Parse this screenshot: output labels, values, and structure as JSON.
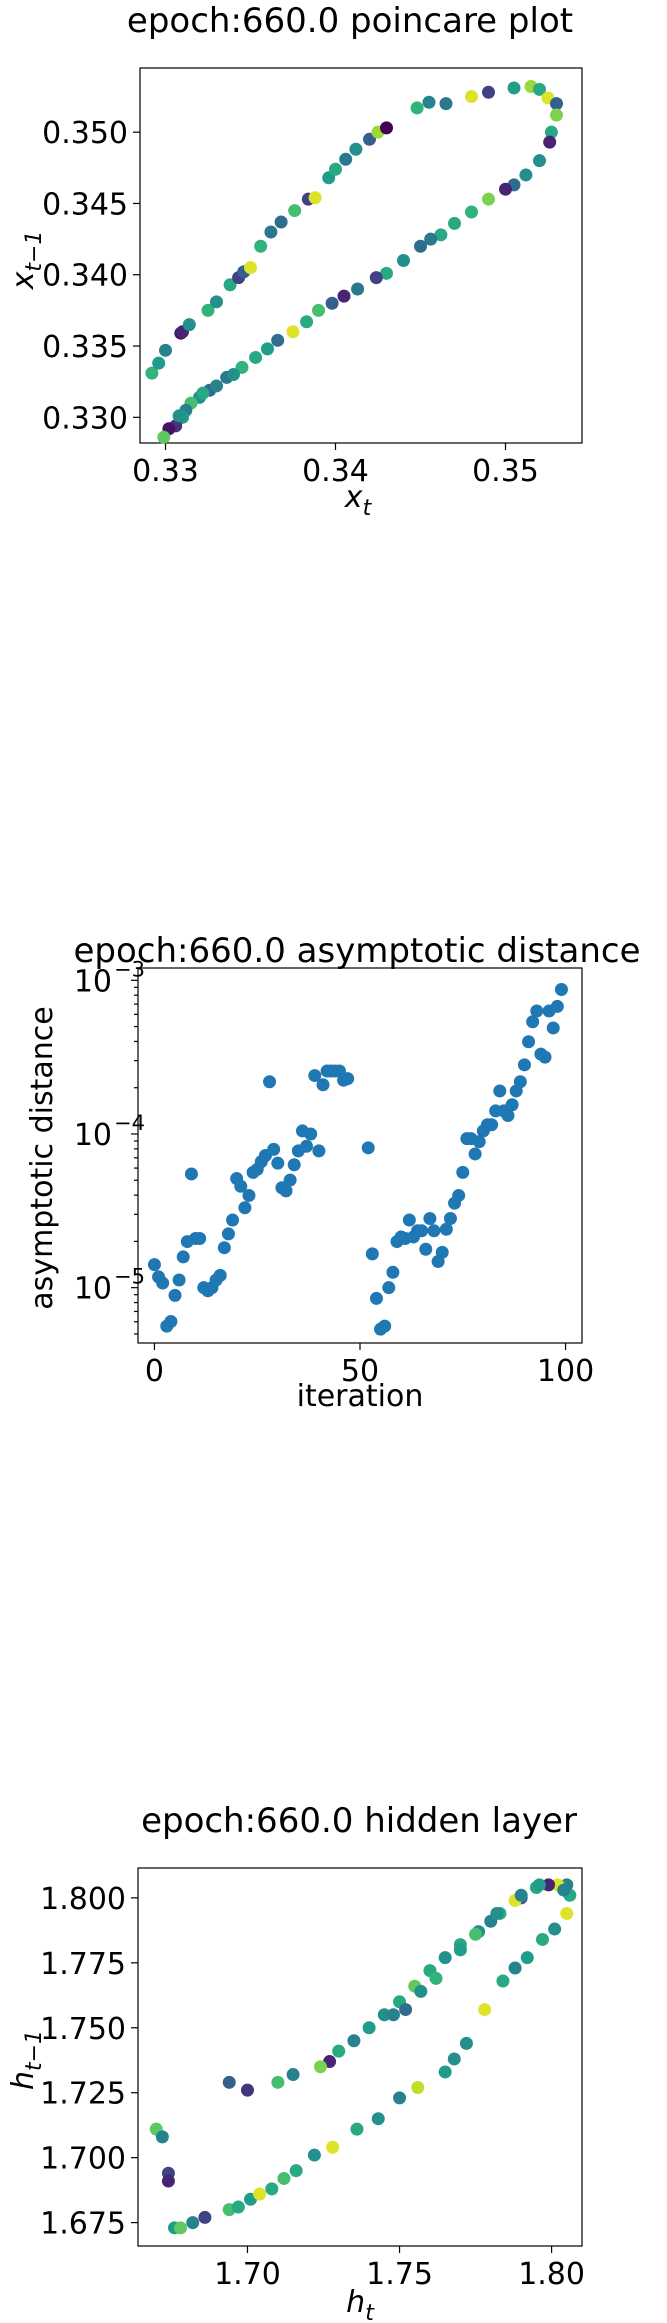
{
  "chart_data": [
    {
      "type": "scatter",
      "title": "epoch:660.0 poincare plot",
      "xlabel_base": "x",
      "xlabel_sub": "t",
      "ylabel_base": "x",
      "ylabel_sub": "t−1",
      "xlim": [
        0.3285,
        0.3545
      ],
      "ylim": [
        0.3282,
        0.3545
      ],
      "xticks": [
        0.33,
        0.34,
        0.35
      ],
      "xtick_labels": [
        "0.33",
        "0.34",
        "0.35"
      ],
      "yticks": [
        0.33,
        0.335,
        0.34,
        0.345,
        0.35
      ],
      "ytick_labels": [
        "0.330",
        "0.335",
        "0.340",
        "0.345",
        "0.350"
      ],
      "color_scale": "viridis",
      "points": [
        [
          0.3292,
          0.3331,
          0.65
        ],
        [
          0.3296,
          0.3338,
          0.55
        ],
        [
          0.33,
          0.3347,
          0.45
        ],
        [
          0.3309,
          0.3359,
          0.05
        ],
        [
          0.331,
          0.336,
          0.1
        ],
        [
          0.3314,
          0.3365,
          0.5
        ],
        [
          0.3325,
          0.3375,
          0.65
        ],
        [
          0.333,
          0.3381,
          0.5
        ],
        [
          0.3338,
          0.3393,
          0.6
        ],
        [
          0.3343,
          0.3398,
          0.2
        ],
        [
          0.3346,
          0.3402,
          0.3
        ],
        [
          0.335,
          0.3405,
          0.95
        ],
        [
          0.3356,
          0.342,
          0.65
        ],
        [
          0.3362,
          0.343,
          0.4
        ],
        [
          0.3368,
          0.3437,
          0.35
        ],
        [
          0.3376,
          0.3445,
          0.7
        ],
        [
          0.3384,
          0.3453,
          0.2
        ],
        [
          0.3388,
          0.3454,
          0.95
        ],
        [
          0.3396,
          0.3468,
          0.55
        ],
        [
          0.34,
          0.3474,
          0.6
        ],
        [
          0.3406,
          0.3481,
          0.4
        ],
        [
          0.3412,
          0.3488,
          0.5
        ],
        [
          0.342,
          0.3495,
          0.3
        ],
        [
          0.3425,
          0.35,
          0.85
        ],
        [
          0.343,
          0.3503,
          0.0
        ],
        [
          0.3448,
          0.3517,
          0.65
        ],
        [
          0.3455,
          0.3521,
          0.45
        ],
        [
          0.3465,
          0.352,
          0.4
        ],
        [
          0.348,
          0.3525,
          0.95
        ],
        [
          0.349,
          0.3528,
          0.2
        ],
        [
          0.3505,
          0.3531,
          0.55
        ],
        [
          0.3515,
          0.3532,
          0.85
        ],
        [
          0.352,
          0.353,
          0.6
        ],
        [
          0.3525,
          0.3524,
          0.95
        ],
        [
          0.353,
          0.352,
          0.3
        ],
        [
          0.353,
          0.3512,
          0.8
        ],
        [
          0.3527,
          0.35,
          0.6
        ],
        [
          0.3526,
          0.3493,
          0.1
        ],
        [
          0.352,
          0.348,
          0.5
        ],
        [
          0.3512,
          0.347,
          0.5
        ],
        [
          0.3505,
          0.3463,
          0.35
        ],
        [
          0.35,
          0.346,
          0.1
        ],
        [
          0.349,
          0.3453,
          0.8
        ],
        [
          0.348,
          0.3444,
          0.65
        ],
        [
          0.347,
          0.3436,
          0.6
        ],
        [
          0.3462,
          0.3428,
          0.6
        ],
        [
          0.3456,
          0.3425,
          0.4
        ],
        [
          0.345,
          0.342,
          0.35
        ],
        [
          0.344,
          0.341,
          0.5
        ],
        [
          0.343,
          0.3401,
          0.6
        ],
        [
          0.3424,
          0.3398,
          0.2
        ],
        [
          0.3413,
          0.339,
          0.4
        ],
        [
          0.3405,
          0.3385,
          0.1
        ],
        [
          0.3398,
          0.338,
          0.3
        ],
        [
          0.339,
          0.3375,
          0.7
        ],
        [
          0.3383,
          0.3367,
          0.6
        ],
        [
          0.3375,
          0.336,
          0.95
        ],
        [
          0.3366,
          0.3354,
          0.35
        ],
        [
          0.336,
          0.3348,
          0.55
        ],
        [
          0.3353,
          0.3342,
          0.6
        ],
        [
          0.3345,
          0.3335,
          0.65
        ],
        [
          0.3336,
          0.3328,
          0.4
        ],
        [
          0.3326,
          0.3319,
          0.35
        ],
        [
          0.332,
          0.3314,
          0.5
        ],
        [
          0.3315,
          0.331,
          0.7
        ],
        [
          0.3312,
          0.3305,
          0.45
        ],
        [
          0.331,
          0.33,
          0.55
        ],
        [
          0.3306,
          0.3294,
          0.15
        ],
        [
          0.3302,
          0.3292,
          0.05
        ],
        [
          0.3299,
          0.3286,
          0.75
        ],
        [
          0.3308,
          0.3301,
          0.5
        ],
        [
          0.3322,
          0.3317,
          0.6
        ],
        [
          0.333,
          0.3322,
          0.45
        ],
        [
          0.334,
          0.333,
          0.5
        ]
      ]
    },
    {
      "type": "scatter",
      "title": "epoch:660.0 asymptotic distance",
      "xlabel": "iteration",
      "ylabel": "asymptotic distance",
      "xlim": [
        -4,
        104
      ],
      "ylim_log10": [
        -5.36,
        -2.92
      ],
      "yscale": "log",
      "xticks": [
        0,
        50,
        100
      ],
      "xtick_labels": [
        "0",
        "50",
        "100"
      ],
      "yticks_log10": [
        -5,
        -4,
        -3
      ],
      "ytick_bases": [
        "10",
        "10",
        "10"
      ],
      "ytick_exponents": [
        "−5",
        "−4",
        "−3"
      ],
      "color": "#1f77b4",
      "y_exponent_values": [
        -4.85,
        -4.93,
        -4.97,
        -5.25,
        -5.22,
        -5.05,
        -4.95,
        -4.8,
        -4.7,
        -4.26,
        -4.68,
        -4.68,
        -5.0,
        -5.02,
        -5.0,
        -4.95,
        -4.92,
        -4.74,
        -4.65,
        -4.56,
        -4.29,
        -4.34,
        -4.48,
        -4.4,
        -4.25,
        -4.23,
        -4.18,
        -4.14,
        -3.66,
        -4.1,
        -4.19,
        -4.35,
        -4.37,
        -4.3,
        -4.2,
        -4.11,
        -3.98,
        -4.08,
        -4.0,
        -3.62,
        -4.11,
        -3.68,
        -3.59,
        -3.59,
        -3.59,
        -3.59,
        -3.65,
        -3.64,
        -4.09,
        -4.78,
        -5.07,
        -5.27,
        -5.25,
        -5.0,
        -4.9,
        -4.7,
        -4.67,
        -4.68,
        -4.56,
        -4.67,
        -4.63,
        -4.63,
        -4.75,
        -4.55,
        -4.63,
        -4.83,
        -4.77,
        -4.62,
        -4.55,
        -4.45,
        -4.4,
        -4.25,
        -4.03,
        -4.03,
        -4.13,
        -4.05,
        -3.98,
        -3.94,
        -3.94,
        -3.85,
        -3.72,
        -3.85,
        -3.88,
        -3.81,
        -3.72,
        -3.66,
        -3.55,
        -3.4,
        -3.27,
        -3.2,
        -3.48,
        -3.5,
        -3.2,
        -3.31,
        -3.17,
        -3.06
      ]
    },
    {
      "type": "scatter",
      "title": "epoch:660.0 hidden layer",
      "xlabel_base": "h",
      "xlabel_sub": "t",
      "ylabel_base": "h",
      "ylabel_sub": "t−1",
      "xlim": [
        1.664,
        1.81
      ],
      "ylim": [
        1.666,
        1.8115
      ],
      "xticks": [
        1.7,
        1.75,
        1.8
      ],
      "xtick_labels": [
        "1.70",
        "1.75",
        "1.80"
      ],
      "yticks": [
        1.675,
        1.7,
        1.725,
        1.75,
        1.775,
        1.8
      ],
      "ytick_labels": [
        "1.675",
        "1.700",
        "1.725",
        "1.750",
        "1.775",
        "1.800"
      ],
      "color_scale": "viridis",
      "points": [
        [
          1.67,
          1.711,
          0.75
        ],
        [
          1.672,
          1.708,
          0.45
        ],
        [
          1.674,
          1.694,
          0.2
        ],
        [
          1.674,
          1.691,
          0.1
        ],
        [
          1.676,
          1.673,
          0.55
        ],
        [
          1.678,
          1.673,
          0.75
        ],
        [
          1.682,
          1.675,
          0.45
        ],
        [
          1.686,
          1.677,
          0.2
        ],
        [
          1.694,
          1.68,
          0.7
        ],
        [
          1.697,
          1.681,
          0.6
        ],
        [
          1.701,
          1.684,
          0.55
        ],
        [
          1.704,
          1.686,
          0.95
        ],
        [
          1.708,
          1.688,
          0.6
        ],
        [
          1.712,
          1.692,
          0.7
        ],
        [
          1.716,
          1.695,
          0.6
        ],
        [
          1.722,
          1.701,
          0.5
        ],
        [
          1.728,
          1.704,
          0.95
        ],
        [
          1.736,
          1.711,
          0.6
        ],
        [
          1.743,
          1.715,
          0.5
        ],
        [
          1.75,
          1.723,
          0.45
        ],
        [
          1.756,
          1.727,
          0.9
        ],
        [
          1.765,
          1.733,
          0.55
        ],
        [
          1.768,
          1.738,
          0.5
        ],
        [
          1.772,
          1.744,
          0.5
        ],
        [
          1.778,
          1.757,
          0.95
        ],
        [
          1.784,
          1.768,
          0.6
        ],
        [
          1.788,
          1.773,
          0.45
        ],
        [
          1.792,
          1.777,
          0.55
        ],
        [
          1.797,
          1.784,
          0.6
        ],
        [
          1.801,
          1.788,
          0.5
        ],
        [
          1.805,
          1.794,
          0.95
        ],
        [
          1.806,
          1.801,
          0.6
        ],
        [
          1.805,
          1.805,
          0.45
        ],
        [
          1.802,
          1.805,
          0.95
        ],
        [
          1.799,
          1.805,
          0.1
        ],
        [
          1.795,
          1.804,
          0.6
        ],
        [
          1.79,
          1.8,
          0.3
        ],
        [
          1.788,
          1.799,
          0.95
        ],
        [
          1.783,
          1.794,
          0.6
        ],
        [
          1.78,
          1.791,
          0.45
        ],
        [
          1.776,
          1.787,
          0.5
        ],
        [
          1.77,
          1.782,
          0.6
        ],
        [
          1.765,
          1.777,
          0.5
        ],
        [
          1.76,
          1.772,
          0.6
        ],
        [
          1.755,
          1.766,
          0.75
        ],
        [
          1.75,
          1.76,
          0.6
        ],
        [
          1.745,
          1.755,
          0.5
        ],
        [
          1.74,
          1.75,
          0.55
        ],
        [
          1.735,
          1.745,
          0.45
        ],
        [
          1.73,
          1.741,
          0.6
        ],
        [
          1.727,
          1.737,
          0.1
        ],
        [
          1.724,
          1.735,
          0.8
        ],
        [
          1.715,
          1.732,
          0.45
        ],
        [
          1.71,
          1.729,
          0.7
        ],
        [
          1.7,
          1.726,
          0.15
        ],
        [
          1.694,
          1.729,
          0.3
        ],
        [
          1.748,
          1.755,
          0.45
        ],
        [
          1.752,
          1.757,
          0.35
        ],
        [
          1.757,
          1.764,
          0.5
        ],
        [
          1.762,
          1.769,
          0.65
        ],
        [
          1.77,
          1.78,
          0.55
        ],
        [
          1.775,
          1.786,
          0.7
        ],
        [
          1.782,
          1.794,
          0.5
        ],
        [
          1.79,
          1.801,
          0.45
        ],
        [
          1.796,
          1.805,
          0.55
        ],
        [
          1.804,
          1.803,
          0.45
        ]
      ]
    }
  ]
}
